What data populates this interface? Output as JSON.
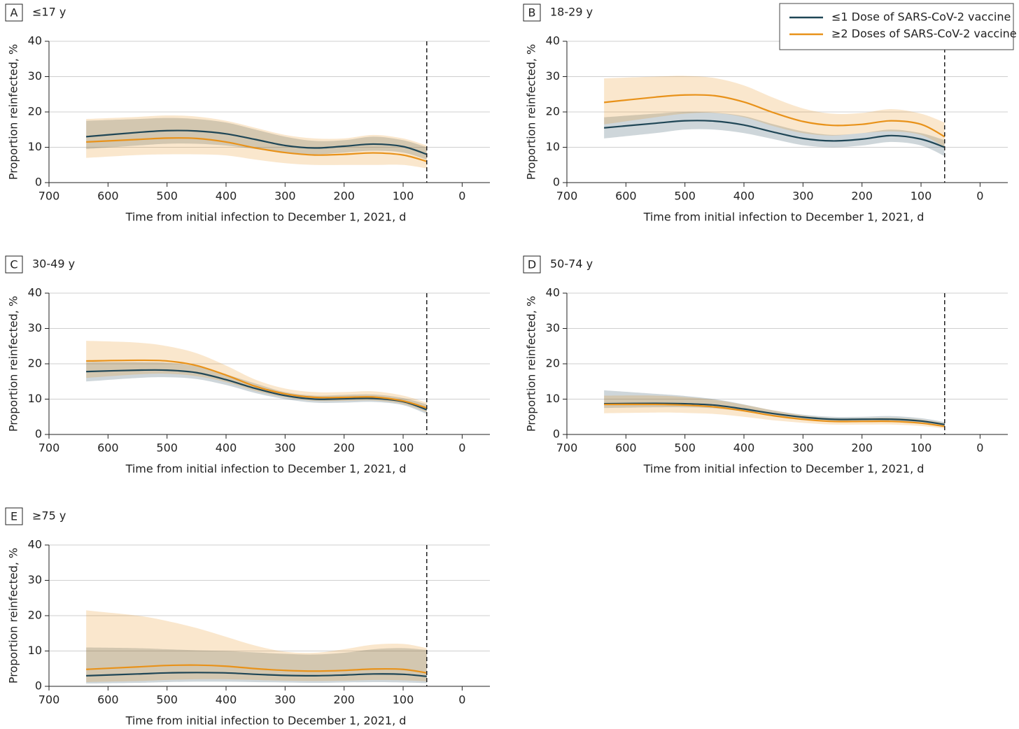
{
  "chart_data": [
    {
      "type": "line",
      "label": "A",
      "title": "≤17 y",
      "xlabel": "Time from initial infection to December 1, 2021, d",
      "ylabel": "Proportion reinfected, %",
      "x": [
        637,
        550,
        500,
        450,
        400,
        350,
        300,
        250,
        200,
        150,
        100,
        60
      ],
      "xlim": [
        700,
        -47
      ],
      "xticks": [
        700,
        600,
        500,
        400,
        300,
        200,
        100,
        0
      ],
      "ylim": [
        0,
        40
      ],
      "yticks": [
        0,
        10,
        20,
        30,
        40
      ],
      "grid": true,
      "reference_x": 60,
      "series": [
        {
          "color": "#1f4656",
          "values": [
            13,
            14.2,
            14.7,
            14.6,
            13.8,
            12.2,
            10.5,
            9.8,
            10.3,
            10.9,
            10.2,
            8
          ],
          "lower": [
            9.5,
            10.5,
            11,
            11,
            10.5,
            9.5,
            8.5,
            8,
            8.5,
            9,
            8.5,
            6.5
          ],
          "upper": [
            17.5,
            18,
            18.3,
            18,
            17,
            15,
            13,
            11.8,
            12,
            13,
            12,
            10
          ]
        },
        {
          "color": "#e8921a",
          "values": [
            11.5,
            12.2,
            12.6,
            12.5,
            11.5,
            9.8,
            8.5,
            7.8,
            8,
            8.4,
            7.8,
            6
          ],
          "lower": [
            7,
            7.8,
            8,
            8,
            7.7,
            6.5,
            5.5,
            5,
            5,
            5,
            5,
            4
          ],
          "upper": [
            18,
            18.6,
            19,
            18.7,
            17.5,
            15.5,
            13.5,
            12.5,
            12.5,
            13.5,
            12.5,
            10.5
          ]
        }
      ]
    },
    {
      "type": "line",
      "label": "B",
      "title": "18-29 y",
      "xlabel": "Time from initial infection to December 1, 2021, d",
      "ylabel": "Proportion reinfected, %",
      "x": [
        637,
        550,
        500,
        450,
        400,
        350,
        300,
        250,
        200,
        150,
        100,
        60
      ],
      "xlim": [
        700,
        -47
      ],
      "xticks": [
        700,
        600,
        500,
        400,
        300,
        200,
        100,
        0
      ],
      "ylim": [
        0,
        40
      ],
      "yticks": [
        0,
        10,
        20,
        30,
        40
      ],
      "grid": true,
      "reference_x": 60,
      "legend": "upper right",
      "series": [
        {
          "name": "≤1 Dose of SARS-CoV-2 vaccine",
          "color": "#1f4656",
          "values": [
            15.5,
            16.8,
            17.5,
            17.4,
            16.3,
            14.3,
            12.5,
            11.8,
            12.3,
            13.3,
            12.3,
            10
          ],
          "lower": [
            12.5,
            14,
            15,
            15,
            14,
            12.3,
            10.6,
            10,
            10.5,
            11.5,
            10.5,
            7.5
          ],
          "upper": [
            18.5,
            19.5,
            20,
            19.8,
            18.8,
            16.5,
            14.5,
            13.5,
            14,
            15,
            14,
            12
          ]
        },
        {
          "name": "≥2 Doses of SARS-CoV-2 vaccine",
          "color": "#e8921a",
          "values": [
            22.7,
            24.2,
            24.8,
            24.6,
            22.8,
            19.8,
            17.3,
            16.2,
            16.5,
            17.5,
            16.5,
            13
          ],
          "lower": [
            16.5,
            18.5,
            19.5,
            19.7,
            18.5,
            16,
            14,
            13.3,
            14,
            14.5,
            13.5,
            10
          ],
          "upper": [
            29.5,
            30,
            30.2,
            29.6,
            27.5,
            24,
            21,
            19.5,
            19.7,
            20.8,
            19.5,
            17
          ]
        }
      ]
    },
    {
      "type": "line",
      "label": "C",
      "title": "30-49 y",
      "xlabel": "Time from initial infection to December 1, 2021, d",
      "ylabel": "Proportion reinfected, %",
      "x": [
        637,
        550,
        500,
        450,
        400,
        350,
        300,
        250,
        200,
        150,
        100,
        60
      ],
      "xlim": [
        700,
        -47
      ],
      "xticks": [
        700,
        600,
        500,
        400,
        300,
        200,
        100,
        0
      ],
      "ylim": [
        0,
        40
      ],
      "yticks": [
        0,
        10,
        20,
        30,
        40
      ],
      "grid": true,
      "reference_x": 60,
      "series": [
        {
          "color": "#1f4656",
          "values": [
            17.8,
            18.2,
            18.2,
            17.5,
            15.5,
            13,
            11,
            10,
            10.1,
            10.2,
            9.3,
            7
          ],
          "lower": [
            15,
            16,
            16.2,
            15.7,
            14,
            11.7,
            10,
            9,
            9,
            9.2,
            8.3,
            5.8
          ],
          "upper": [
            20.5,
            20.5,
            20.3,
            19.3,
            17,
            14.4,
            12,
            11,
            11.2,
            11.3,
            10.3,
            8.5
          ]
        },
        {
          "color": "#e8921a",
          "values": [
            20.8,
            21,
            20.8,
            19.5,
            16.8,
            13.6,
            11.5,
            10.5,
            10.5,
            10.6,
            9.5,
            7.5
          ],
          "lower": [
            16,
            17,
            17.2,
            16.5,
            14.8,
            12.3,
            10.5,
            9.5,
            9.5,
            9.6,
            8.6,
            6.3
          ],
          "upper": [
            26.5,
            26,
            25,
            23,
            19.5,
            15.5,
            13,
            12,
            12,
            12.2,
            11,
            9
          ]
        }
      ]
    },
    {
      "type": "line",
      "label": "D",
      "title": "50-74 y",
      "xlabel": "Time from initial infection to December 1, 2021, d",
      "ylabel": "Proportion reinfected, %",
      "x": [
        637,
        550,
        500,
        450,
        400,
        350,
        300,
        250,
        200,
        150,
        100,
        60
      ],
      "xlim": [
        700,
        -47
      ],
      "xticks": [
        700,
        600,
        500,
        400,
        300,
        200,
        100,
        0
      ],
      "ylim": [
        0,
        40
      ],
      "yticks": [
        0,
        10,
        20,
        30,
        40
      ],
      "grid": true,
      "reference_x": 60,
      "series": [
        {
          "color": "#1f4656",
          "values": [
            8.7,
            8.8,
            8.7,
            8.3,
            7.2,
            5.9,
            4.9,
            4.3,
            4.3,
            4.3,
            3.8,
            2.8
          ],
          "lower": [
            7.5,
            7.7,
            7.7,
            7.4,
            6.5,
            5.3,
            4.4,
            3.9,
            3.9,
            3.9,
            3.3,
            2.3
          ],
          "upper": [
            12.5,
            11.5,
            10.9,
            10,
            8.5,
            6.8,
            5.6,
            5,
            5,
            5.2,
            4.6,
            3.5
          ]
        },
        {
          "color": "#e8921a",
          "values": [
            8.5,
            8.5,
            8.3,
            7.8,
            6.7,
            5.3,
            4.3,
            3.7,
            3.7,
            3.7,
            3.2,
            2.3
          ],
          "lower": [
            6,
            6.2,
            6.1,
            5.8,
            5,
            4,
            3.3,
            2.8,
            2.8,
            2.8,
            2.4,
            1.7
          ],
          "upper": [
            11,
            11,
            10.6,
            9.8,
            8.4,
            6.8,
            5.4,
            4.6,
            4.6,
            4.7,
            4.2,
            3.2
          ]
        }
      ]
    },
    {
      "type": "line",
      "label": "E",
      "title": "≥75 y",
      "xlabel": "Time from initial infection to December 1, 2021, d",
      "ylabel": "Proportion reinfected, %",
      "x": [
        637,
        550,
        500,
        450,
        400,
        350,
        300,
        250,
        200,
        150,
        100,
        60
      ],
      "xlim": [
        700,
        -47
      ],
      "xticks": [
        700,
        600,
        500,
        400,
        300,
        200,
        100,
        0
      ],
      "ylim": [
        0,
        40
      ],
      "yticks": [
        0,
        10,
        20,
        30,
        40
      ],
      "grid": true,
      "reference_x": 60,
      "series": [
        {
          "color": "#1f4656",
          "values": [
            3,
            3.5,
            3.8,
            3.9,
            3.8,
            3.4,
            3.1,
            3,
            3.2,
            3.5,
            3.4,
            2.8
          ],
          "lower": [
            0.8,
            1,
            1.2,
            1.3,
            1.3,
            1.2,
            1.1,
            1,
            1.1,
            1.2,
            1.1,
            0.9
          ],
          "upper": [
            11,
            10.8,
            10.5,
            10.2,
            10,
            9.6,
            9.2,
            9,
            9.5,
            10.5,
            10.8,
            10.3
          ]
        },
        {
          "color": "#e8921a",
          "values": [
            4.8,
            5.5,
            5.9,
            6,
            5.7,
            5,
            4.5,
            4.3,
            4.5,
            4.9,
            4.8,
            3.8
          ],
          "lower": [
            1.2,
            1.5,
            1.8,
            2,
            2,
            1.8,
            1.6,
            1.5,
            1.6,
            1.8,
            1.7,
            1.4
          ],
          "upper": [
            21.5,
            20,
            18.5,
            16.5,
            14,
            11.5,
            9.8,
            9.5,
            10.5,
            11.8,
            12,
            10.8
          ]
        }
      ]
    }
  ]
}
